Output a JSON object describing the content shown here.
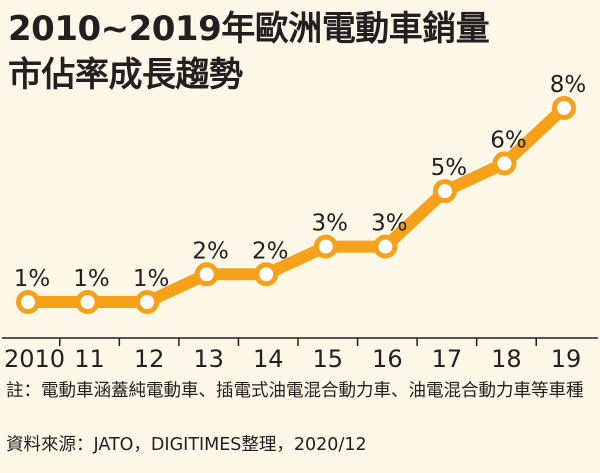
{
  "title_line1": "2010~2019年歐洲電動車銷量",
  "title_line2": "市佔率成長趨勢",
  "chart_data": {
    "type": "line",
    "categories": [
      "2010",
      "11",
      "12",
      "13",
      "14",
      "15",
      "16",
      "17",
      "18",
      "19"
    ],
    "values": [
      1,
      1,
      1,
      2,
      2,
      3,
      3,
      5,
      6,
      8
    ],
    "data_labels": [
      "1%",
      "1%",
      "1%",
      "2%",
      "2%",
      "3%",
      "3%",
      "5%",
      "6%",
      "8%"
    ],
    "title": "2010~2019年歐洲電動車銷量市佔率成長趨勢",
    "xlabel": "",
    "ylabel": "",
    "ylim": [
      1,
      8
    ],
    "grid": false,
    "legend": "none",
    "line_color": "#f7a11a",
    "marker_fill": "#ffffff"
  },
  "note_label": "註：",
  "note_text": "電動車涵蓋純電動車、插電式油電混合動力車、油電混合動力車等車種",
  "source_text": "資料來源：JATO，DIGITIMES整理，2020/12"
}
